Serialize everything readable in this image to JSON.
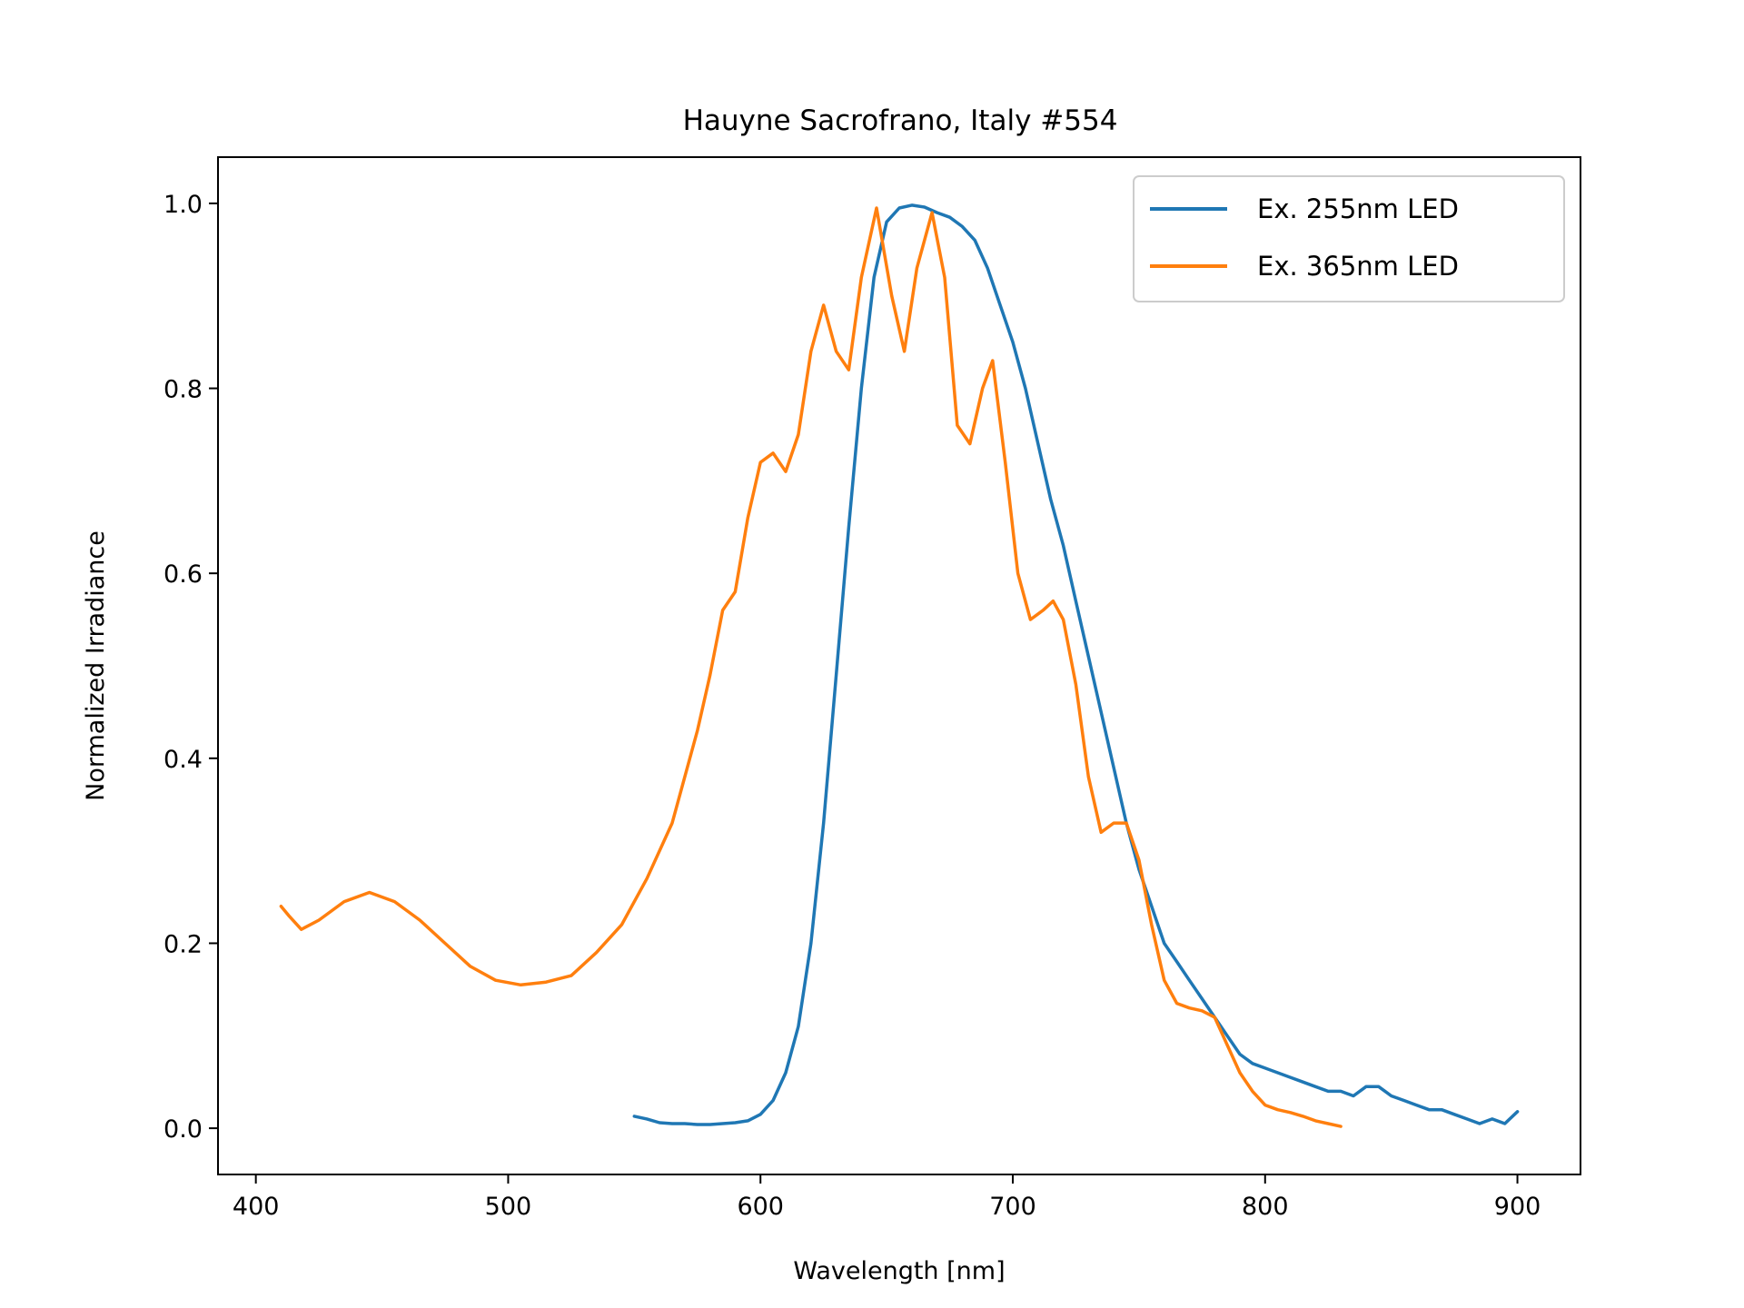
{
  "chart_data": {
    "type": "line",
    "title": "Hauyne Sacrofrano, Italy #554",
    "xlabel": "Wavelength [nm]",
    "ylabel": "Normalized Irradiance",
    "xlim": [
      385,
      925
    ],
    "ylim": [
      -0.05,
      1.05
    ],
    "xticks": [
      400,
      500,
      600,
      700,
      800,
      900
    ],
    "xtick_labels": [
      "400",
      "500",
      "600",
      "700",
      "800",
      "900"
    ],
    "yticks": [
      0.0,
      0.2,
      0.4,
      0.6,
      0.8,
      1.0
    ],
    "ytick_labels": [
      "0.0",
      "0.2",
      "0.4",
      "0.6",
      "0.8",
      "1.0"
    ],
    "grid": false,
    "legend_position": "top-right",
    "series": [
      {
        "name": "Ex. 255nm LED",
        "color": "#1f77b4",
        "x": [
          550,
          555,
          560,
          565,
          570,
          575,
          580,
          585,
          590,
          595,
          600,
          605,
          610,
          615,
          620,
          625,
          630,
          635,
          640,
          645,
          650,
          655,
          660,
          665,
          670,
          675,
          680,
          685,
          690,
          695,
          700,
          705,
          710,
          715,
          720,
          725,
          730,
          735,
          740,
          745,
          750,
          755,
          760,
          765,
          770,
          775,
          780,
          785,
          790,
          795,
          800,
          805,
          810,
          815,
          820,
          825,
          830,
          835,
          840,
          845,
          850,
          855,
          860,
          865,
          870,
          875,
          880,
          885,
          890,
          895,
          900
        ],
        "y": [
          0.013,
          0.01,
          0.006,
          0.005,
          0.005,
          0.004,
          0.004,
          0.005,
          0.006,
          0.008,
          0.015,
          0.03,
          0.06,
          0.11,
          0.2,
          0.33,
          0.49,
          0.65,
          0.8,
          0.92,
          0.98,
          0.995,
          0.998,
          0.996,
          0.99,
          0.985,
          0.975,
          0.96,
          0.93,
          0.89,
          0.85,
          0.8,
          0.74,
          0.68,
          0.63,
          0.57,
          0.51,
          0.45,
          0.39,
          0.33,
          0.28,
          0.24,
          0.2,
          0.18,
          0.16,
          0.14,
          0.12,
          0.1,
          0.08,
          0.07,
          0.065,
          0.06,
          0.055,
          0.05,
          0.045,
          0.04,
          0.04,
          0.035,
          0.045,
          0.045,
          0.035,
          0.03,
          0.025,
          0.02,
          0.02,
          0.015,
          0.01,
          0.005,
          0.01,
          0.005,
          0.018
        ]
      },
      {
        "name": "Ex. 365nm LED",
        "color": "#ff7f0e",
        "x": [
          410,
          413,
          418,
          425,
          435,
          445,
          455,
          465,
          475,
          485,
          495,
          505,
          515,
          525,
          535,
          545,
          555,
          565,
          575,
          580,
          585,
          590,
          595,
          600,
          605,
          610,
          615,
          620,
          625,
          630,
          635,
          640,
          646,
          652,
          657,
          662,
          668,
          673,
          678,
          683,
          688,
          692,
          697,
          702,
          707,
          712,
          716,
          720,
          725,
          730,
          735,
          740,
          745,
          750,
          755,
          760,
          765,
          770,
          775,
          780,
          785,
          790,
          795,
          800,
          805,
          810,
          815,
          820,
          825,
          830
        ],
        "y": [
          0.24,
          0.23,
          0.215,
          0.225,
          0.245,
          0.255,
          0.245,
          0.225,
          0.2,
          0.175,
          0.16,
          0.155,
          0.158,
          0.165,
          0.19,
          0.22,
          0.27,
          0.33,
          0.43,
          0.49,
          0.56,
          0.58,
          0.66,
          0.72,
          0.73,
          0.71,
          0.75,
          0.84,
          0.89,
          0.84,
          0.82,
          0.92,
          0.995,
          0.9,
          0.84,
          0.93,
          0.99,
          0.92,
          0.76,
          0.74,
          0.8,
          0.83,
          0.72,
          0.6,
          0.55,
          0.56,
          0.57,
          0.55,
          0.48,
          0.38,
          0.32,
          0.33,
          0.33,
          0.29,
          0.22,
          0.16,
          0.135,
          0.13,
          0.127,
          0.12,
          0.09,
          0.06,
          0.04,
          0.025,
          0.02,
          0.017,
          0.013,
          0.008,
          0.005,
          0.002
        ]
      }
    ]
  }
}
